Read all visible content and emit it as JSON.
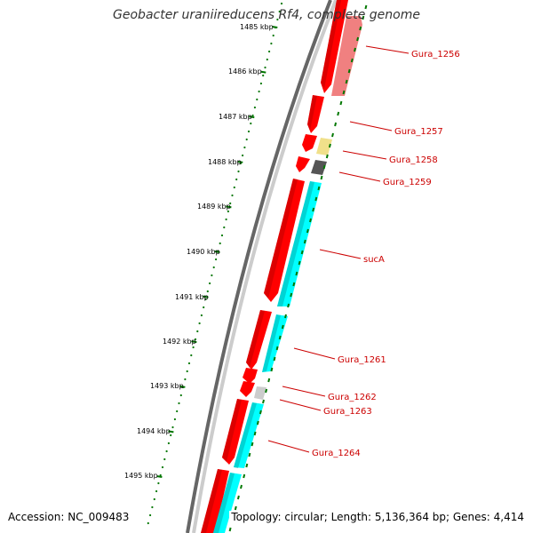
{
  "title": "Geobacter uraniireducens Rf4, complete genome",
  "footer": {
    "accession": "Accession: NC_009483",
    "summary": "Topology: circular; Length: 5,136,364 bp; Genes: 4,414"
  },
  "ruler": {
    "ticks": [
      {
        "label": "1485 kbp",
        "kbp": 1485
      },
      {
        "label": "1486 kbp",
        "kbp": 1486
      },
      {
        "label": "1487 kbp",
        "kbp": 1487
      },
      {
        "label": "1488 kbp",
        "kbp": 1488
      },
      {
        "label": "1489 kbp",
        "kbp": 1489
      },
      {
        "label": "1490 kbp",
        "kbp": 1490
      },
      {
        "label": "1491 kbp",
        "kbp": 1491
      },
      {
        "label": "1492 kbp",
        "kbp": 1492
      },
      {
        "label": "1493 kbp",
        "kbp": 1493
      },
      {
        "label": "1494 kbp",
        "kbp": 1494
      },
      {
        "label": "1495 kbp",
        "kbp": 1495
      }
    ]
  },
  "gene_labels": [
    "Gura_1256",
    "Gura_1257",
    "Gura_1258",
    "Gura_1259",
    "sucA",
    "Gura_1261",
    "Gura_1262",
    "Gura_1263",
    "Gura_1264"
  ],
  "colors": {
    "cds": "#ff0000",
    "cds_dark": "#b00000",
    "rna": "#00ffff",
    "label": "#cc0000",
    "ruler": "#007700",
    "backbone": "#666666"
  }
}
